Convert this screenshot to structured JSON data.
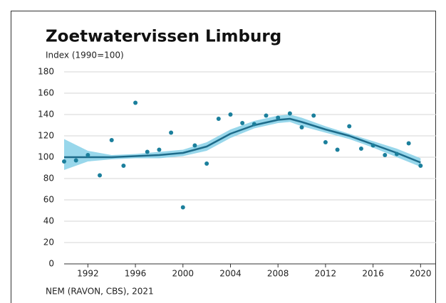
{
  "chart_data": {
    "type": "scatter",
    "title": "Zoetwatervissen Limburg",
    "subtitle": "Index (1990=100)",
    "source": "NEM (RAVON, CBS), 2021",
    "x": [
      1990,
      1991,
      1992,
      1993,
      1994,
      1995,
      1996,
      1997,
      1998,
      1999,
      2000,
      2001,
      2002,
      2003,
      2004,
      2005,
      2006,
      2007,
      2008,
      2009,
      2010,
      2011,
      2012,
      2013,
      2014,
      2015,
      2016,
      2017,
      2018,
      2019,
      2020
    ],
    "values": [
      96,
      97,
      102,
      83,
      116,
      92,
      151,
      105,
      107,
      123,
      53,
      111,
      94,
      136,
      140,
      132,
      131,
      139,
      137,
      141,
      128,
      139,
      114,
      107,
      129,
      108,
      111,
      102,
      103,
      113,
      92
    ],
    "color": "#1b7f9c",
    "trend": {
      "x": [
        1990,
        1992,
        1994,
        1996,
        1998,
        2000,
        2002,
        2004,
        2006,
        2008,
        2009,
        2010,
        2012,
        2014,
        2016,
        2018,
        2020
      ],
      "values": [
        100,
        100,
        100,
        101,
        102,
        104,
        110,
        122,
        130,
        135,
        136,
        133,
        126,
        120,
        112,
        104,
        95
      ],
      "lower": [
        88,
        96,
        98,
        99,
        99,
        101,
        106,
        118,
        127,
        132,
        133,
        129,
        123,
        117,
        109,
        100,
        91
      ],
      "upper": [
        117,
        106,
        102,
        103,
        105,
        107,
        114,
        126,
        134,
        139,
        140,
        137,
        129,
        122,
        115,
        108,
        99
      ],
      "color": "#1d6b8a",
      "band_color": "#86d0e8"
    },
    "xlim": [
      1990,
      2021.3
    ],
    "xticks": [
      1992,
      1996,
      2000,
      2004,
      2008,
      2012,
      2016,
      2020
    ],
    "ylim": [
      0,
      180
    ],
    "yticks": [
      0,
      20,
      40,
      60,
      80,
      100,
      120,
      140,
      160,
      180
    ],
    "grid": true
  }
}
